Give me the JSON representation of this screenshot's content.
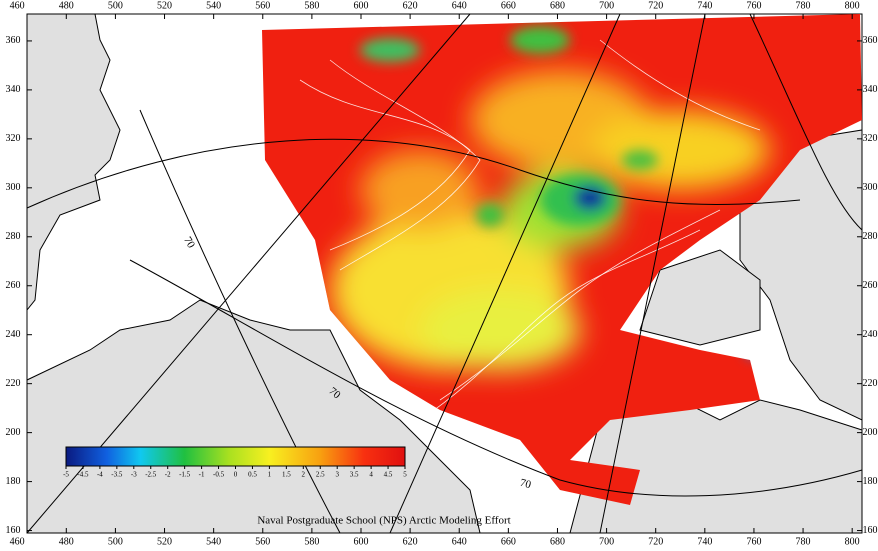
{
  "map": {
    "xlim": [
      464,
      804
    ],
    "ylim": [
      159,
      371
    ],
    "xticks": [
      460,
      480,
      500,
      520,
      540,
      560,
      580,
      600,
      620,
      640,
      660,
      680,
      700,
      720,
      740,
      760,
      780,
      800
    ],
    "yticks": [
      160,
      180,
      200,
      220,
      240,
      260,
      280,
      300,
      320,
      340,
      360
    ],
    "colorbar": {
      "lim": [
        -5,
        5
      ],
      "ticks": [
        -5,
        -4.5,
        -4,
        -3.5,
        -3,
        -2.5,
        -2,
        -1.5,
        -1,
        -0.5,
        0,
        0.5,
        1,
        1.5,
        2,
        2.5,
        3,
        3.5,
        4,
        4.5,
        5
      ]
    },
    "contour_labels": [
      "70",
      "70",
      "70"
    ],
    "credit": "Naval Postgraduate School (NPS) Arctic Modeling Effort"
  }
}
